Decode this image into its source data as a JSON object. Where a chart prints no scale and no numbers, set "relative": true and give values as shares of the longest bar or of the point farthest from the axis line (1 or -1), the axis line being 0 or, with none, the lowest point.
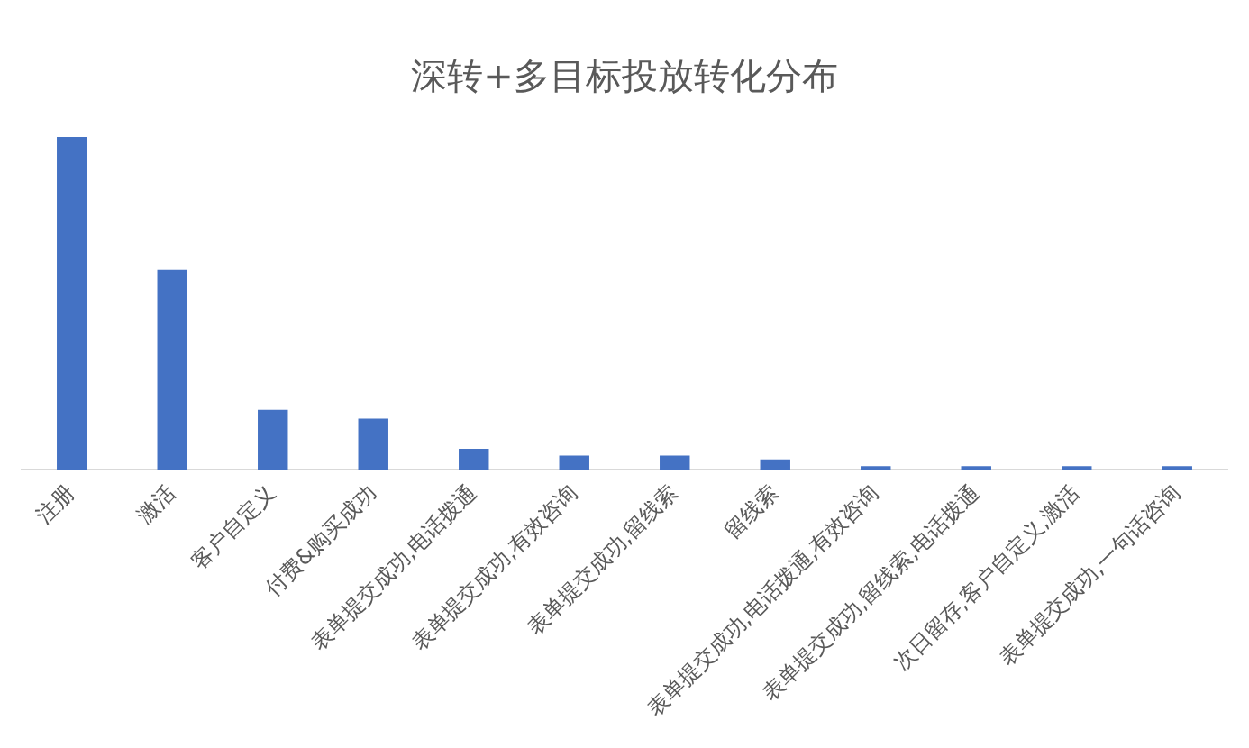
{
  "chart_data": {
    "type": "bar",
    "title": "深转+多目标投放转化分布",
    "relative": true,
    "grid": false,
    "legend": false,
    "categories": [
      "注册",
      "激活",
      "客户自定义",
      "付费&购买成功",
      "表单提交成功,电话拨通",
      "表单提交成功,有效咨询",
      "表单提交成功,留线索",
      "留线索",
      "表单提交成功,电话拨通,有效咨询",
      "表单提交成功,留线索,电话拨通",
      "次日留存,客户自定义,激活",
      "表单提交成功,一句话咨询"
    ],
    "values": [
      1,
      0.6,
      0.18,
      0.154,
      0.063,
      0.043,
      0.043,
      0.031,
      0.011,
      0.011,
      0.011,
      0.011
    ],
    "color": "#4472c4"
  }
}
